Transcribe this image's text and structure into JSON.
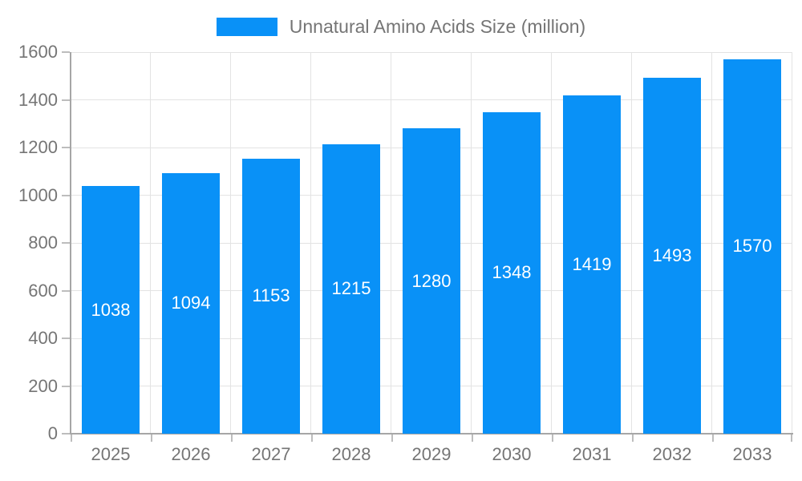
{
  "chart_data": {
    "type": "bar",
    "title": "Unnatural Amino Acids Size (million)",
    "legend": {
      "label": "Unnatural Amino Acids Size (million)",
      "position": "top"
    },
    "categories": [
      "2025",
      "2026",
      "2027",
      "2028",
      "2029",
      "2030",
      "2031",
      "2032",
      "2033"
    ],
    "series": [
      {
        "name": "Unnatural Amino Acids Size (million)",
        "values": [
          1038,
          1094,
          1153,
          1215,
          1280,
          1348,
          1419,
          1493,
          1570
        ]
      }
    ],
    "xlabel": "",
    "ylabel": "",
    "ylim": [
      0,
      1600
    ],
    "yticks": [
      0,
      200,
      400,
      600,
      800,
      1000,
      1200,
      1400,
      1600
    ],
    "grid": "both",
    "bar_value_labels": "inside-center",
    "colors": {
      "bar": "#0991f7",
      "grid": "#e3e3e3",
      "axis": "#a6a6a6",
      "tick": "#bdbdbd",
      "text": "#757575",
      "bar_label": "#ffffff",
      "background": "#ffffff"
    }
  }
}
